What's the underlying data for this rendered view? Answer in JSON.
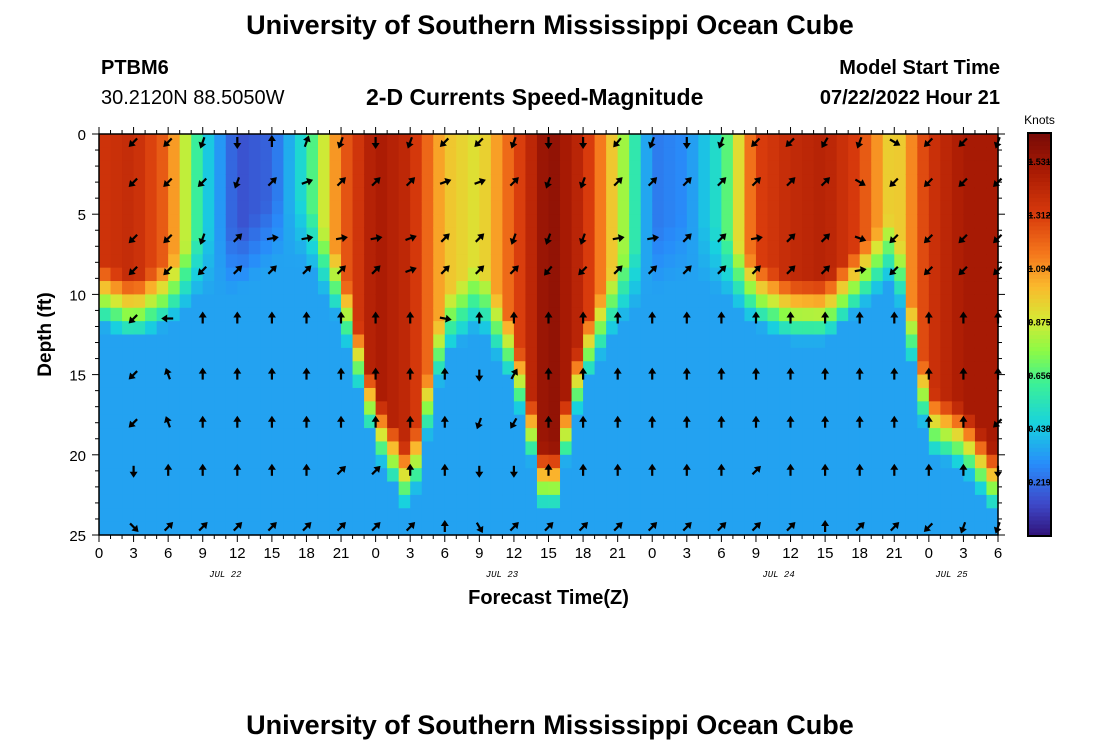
{
  "header": {
    "title": "University of Southern Mississippi Ocean Cube",
    "station_id": "PTBM6",
    "station_coords": "30.2120N  88.5050W",
    "subtitle": "2-D Currents Speed-Magnitude",
    "model_start_label": "Model Start Time",
    "model_start_value": "07/22/2022 Hour 21"
  },
  "footer": {
    "title": "University of Southern Mississippi Ocean Cube"
  },
  "chart_data": {
    "type": "heatmap",
    "title": "2-D Currents Speed-Magnitude",
    "xlabel": "Forecast Time(Z)",
    "ylabel": "Depth (ft)",
    "x_unit": "hours since 2022-07-22 00Z",
    "xlim": [
      0,
      78
    ],
    "ylim": [
      0,
      25
    ],
    "y_ticks": [
      0,
      5,
      10,
      15,
      20,
      25
    ],
    "x_ticks": [
      {
        "x": 0,
        "label": "0"
      },
      {
        "x": 3,
        "label": "3"
      },
      {
        "x": 6,
        "label": "6"
      },
      {
        "x": 9,
        "label": "9"
      },
      {
        "x": 12,
        "label": "12"
      },
      {
        "x": 15,
        "label": "15"
      },
      {
        "x": 18,
        "label": "18"
      },
      {
        "x": 21,
        "label": "21"
      },
      {
        "x": 24,
        "label": "0"
      },
      {
        "x": 27,
        "label": "3"
      },
      {
        "x": 30,
        "label": "6"
      },
      {
        "x": 33,
        "label": "9"
      },
      {
        "x": 36,
        "label": "12"
      },
      {
        "x": 39,
        "label": "15"
      },
      {
        "x": 42,
        "label": "18"
      },
      {
        "x": 45,
        "label": "21"
      },
      {
        "x": 48,
        "label": "0"
      },
      {
        "x": 51,
        "label": "3"
      },
      {
        "x": 54,
        "label": "6"
      },
      {
        "x": 57,
        "label": "9"
      },
      {
        "x": 60,
        "label": "12"
      },
      {
        "x": 63,
        "label": "15"
      },
      {
        "x": 66,
        "label": "18"
      },
      {
        "x": 69,
        "label": "21"
      },
      {
        "x": 72,
        "label": "0"
      },
      {
        "x": 75,
        "label": "3"
      },
      {
        "x": 78,
        "label": "6"
      }
    ],
    "day_labels": [
      {
        "x": 12,
        "label": "JUL 22"
      },
      {
        "x": 36,
        "label": "JUL 23"
      },
      {
        "x": 60,
        "label": "JUL 24"
      },
      {
        "x": 75,
        "label": "JUL 25"
      }
    ],
    "colorbar": {
      "unit": "Knots",
      "min": 0.0,
      "max": 1.65,
      "ticks": [
        0.219,
        0.438,
        0.656,
        0.875,
        1.094,
        1.312,
        1.531
      ]
    },
    "surface_speed_knots": {
      "hours": [
        0,
        3,
        6,
        9,
        12,
        15,
        18,
        21,
        24,
        27,
        30,
        33,
        36,
        39,
        42,
        45,
        48,
        51,
        54,
        57,
        60,
        63,
        66,
        69,
        72,
        75,
        78
      ],
      "values": [
        1.35,
        1.4,
        1.2,
        0.5,
        0.15,
        0.2,
        0.55,
        1.2,
        1.5,
        1.4,
        1.0,
        0.9,
        1.25,
        1.6,
        1.4,
        0.9,
        0.25,
        0.3,
        0.55,
        1.3,
        1.4,
        1.45,
        1.3,
        0.9,
        1.35,
        1.5,
        1.5
      ]
    },
    "speed_max_depth_ft": {
      "hours": [
        0,
        3,
        6,
        9,
        12,
        15,
        18,
        21,
        24,
        27,
        30,
        33,
        36,
        39,
        42,
        45,
        48,
        51,
        54,
        57,
        60,
        63,
        66,
        69,
        72,
        75,
        78
      ],
      "values": [
        8,
        9,
        8,
        6,
        6,
        4,
        4,
        8,
        16,
        20,
        10,
        8,
        12,
        21,
        12,
        8,
        6,
        5,
        6,
        8,
        9,
        9,
        7,
        5,
        16,
        17,
        20
      ]
    },
    "deep_speed_knots": 0.35,
    "arrow_rows_depth_ft": [
      0.5,
      3,
      6.5,
      8.5,
      11.5,
      15,
      18,
      21,
      24.5
    ],
    "arrow_hours": [
      3,
      6,
      9,
      12,
      15,
      18,
      21,
      24,
      27,
      30,
      33,
      36,
      39,
      42,
      45,
      48,
      51,
      54,
      57,
      60,
      63,
      66,
      69,
      72,
      75,
      78
    ],
    "arrow_direction_deg": [
      [
        225,
        225,
        200,
        180,
        0,
        20,
        200,
        180,
        200,
        225,
        225,
        200,
        180,
        180,
        220,
        200,
        180,
        200,
        225,
        225,
        210,
        200,
        120,
        225,
        225,
        200
      ],
      [
        225,
        225,
        225,
        200,
        45,
        70,
        45,
        45,
        45,
        70,
        70,
        45,
        200,
        200,
        45,
        45,
        45,
        45,
        45,
        45,
        45,
        120,
        225,
        225,
        225,
        225
      ],
      [
        225,
        225,
        200,
        45,
        80,
        80,
        80,
        80,
        70,
        45,
        45,
        200,
        200,
        200,
        80,
        80,
        45,
        45,
        80,
        45,
        45,
        110,
        225,
        225,
        225,
        225
      ],
      [
        225,
        225,
        225,
        45,
        45,
        45,
        45,
        45,
        70,
        45,
        45,
        45,
        220,
        225,
        45,
        45,
        45,
        45,
        45,
        45,
        45,
        80,
        225,
        225,
        225,
        225
      ],
      [
        225,
        270,
        0,
        0,
        0,
        0,
        0,
        0,
        0,
        100,
        0,
        0,
        0,
        0,
        0,
        0,
        0,
        0,
        0,
        0,
        0,
        0,
        0,
        0,
        0,
        0
      ],
      [
        225,
        340,
        0,
        0,
        0,
        0,
        0,
        0,
        0,
        0,
        180,
        30,
        0,
        0,
        0,
        0,
        0,
        0,
        0,
        0,
        0,
        0,
        0,
        0,
        0,
        0
      ],
      [
        225,
        340,
        0,
        0,
        0,
        0,
        0,
        0,
        0,
        0,
        200,
        210,
        0,
        0,
        0,
        0,
        0,
        0,
        0,
        0,
        0,
        0,
        0,
        0,
        0,
        225
      ],
      [
        180,
        0,
        0,
        0,
        0,
        0,
        45,
        45,
        0,
        0,
        180,
        180,
        0,
        0,
        0,
        0,
        0,
        0,
        45,
        0,
        0,
        0,
        0,
        0,
        0,
        180
      ],
      [
        135,
        45,
        45,
        45,
        45,
        45,
        45,
        45,
        45,
        0,
        150,
        45,
        45,
        45,
        45,
        45,
        45,
        45,
        45,
        45,
        0,
        45,
        45,
        225,
        200,
        200
      ]
    ]
  }
}
